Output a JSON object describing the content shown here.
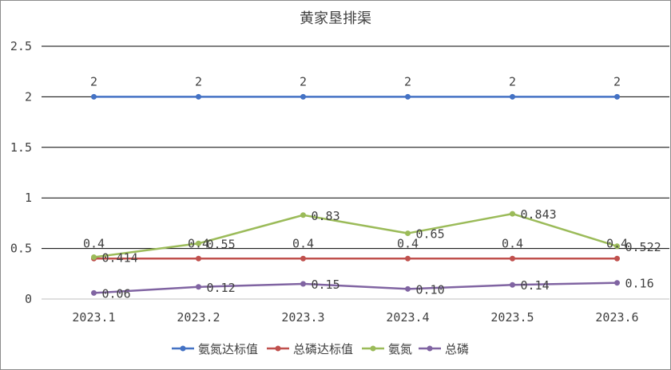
{
  "chart_data": {
    "type": "line",
    "title": "黄家垦排渠",
    "categories": [
      "2023.1",
      "2023.2",
      "2023.3",
      "2023.4",
      "2023.5",
      "2023.6"
    ],
    "ylim": [
      0,
      2.5
    ],
    "yticks": [
      "0",
      "0.5",
      "1",
      "1.5",
      "2",
      "2.5"
    ],
    "grid": true,
    "legend_position": "bottom",
    "series": [
      {
        "name": "氨氮达标值",
        "color": "#4472c4",
        "values": [
          2,
          2,
          2,
          2,
          2,
          2
        ],
        "labels": [
          "2",
          "2",
          "2",
          "2",
          "2",
          "2"
        ]
      },
      {
        "name": "总磷达标值",
        "color": "#c0504d",
        "values": [
          0.4,
          0.4,
          0.4,
          0.4,
          0.4,
          0.4
        ],
        "labels": [
          "0.4",
          "0.4",
          "0.4",
          "0.4",
          "0.4",
          "0.4"
        ]
      },
      {
        "name": "氨氮",
        "color": "#9bbb59",
        "values": [
          0.414,
          0.55,
          0.83,
          0.65,
          0.843,
          0.522
        ],
        "labels": [
          "0.414",
          "0.55",
          "0.83",
          "0.65",
          "0.843",
          "0.522"
        ]
      },
      {
        "name": "总磷",
        "color": "#8064a2",
        "values": [
          0.06,
          0.12,
          0.15,
          0.1,
          0.14,
          0.16
        ],
        "labels": [
          "0.06",
          "0.12",
          "0.15",
          "0.10",
          "0.14",
          "0.16"
        ]
      }
    ]
  }
}
